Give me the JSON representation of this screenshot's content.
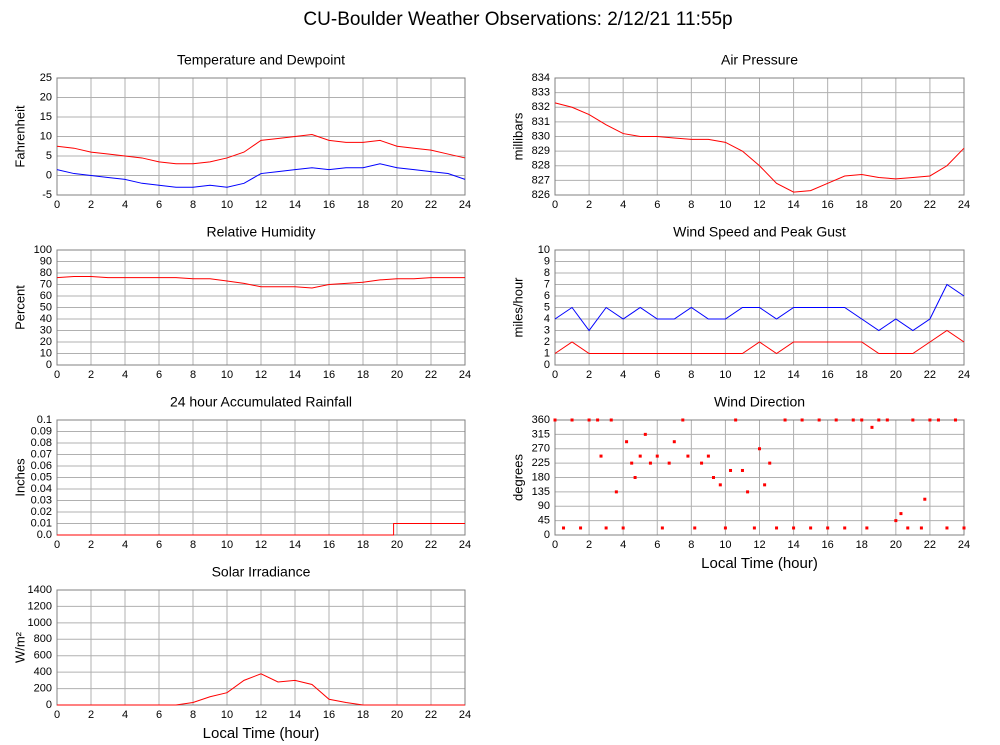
{
  "title": "CU-Boulder Weather Observations: 2/12/21 11:55p",
  "chart_data": [
    {
      "type": "line",
      "title": "Temperature and Dewpoint",
      "ylabel": "Fahrenheit",
      "grid": true,
      "x": [
        0,
        1,
        2,
        3,
        4,
        5,
        6,
        7,
        8,
        9,
        10,
        11,
        12,
        13,
        14,
        15,
        16,
        17,
        18,
        19,
        20,
        21,
        22,
        23,
        24
      ],
      "series": [
        {
          "color": "#ff0000",
          "values": [
            7.5,
            7,
            6,
            5.5,
            5,
            4.5,
            3.5,
            3,
            3,
            3.5,
            4.5,
            6,
            9,
            9.5,
            10,
            10.5,
            9,
            8.5,
            8.5,
            9,
            7.5,
            7,
            6.5,
            5.5,
            4.5
          ]
        },
        {
          "color": "#0000ff",
          "values": [
            1.5,
            0.5,
            0,
            -0.5,
            -1,
            -2,
            -2.5,
            -3,
            -3,
            -2.5,
            -3,
            -2,
            0.5,
            1,
            1.5,
            2,
            1.5,
            2,
            2,
            3,
            2,
            1.5,
            1,
            0.5,
            -1
          ]
        }
      ],
      "xlim": [
        0,
        24
      ],
      "xticks": [
        0,
        2,
        4,
        6,
        8,
        10,
        12,
        14,
        16,
        18,
        20,
        22,
        24
      ],
      "ylim": [
        -5,
        25
      ],
      "yticks": [
        -5,
        0,
        5,
        10,
        15,
        20,
        25
      ]
    },
    {
      "type": "line",
      "title": "Air Pressure",
      "ylabel": "millibars",
      "grid": true,
      "x": [
        0,
        1,
        2,
        3,
        4,
        5,
        6,
        7,
        8,
        9,
        10,
        11,
        12,
        13,
        14,
        15,
        16,
        17,
        18,
        19,
        20,
        21,
        22,
        23,
        24
      ],
      "series": [
        {
          "color": "#ff0000",
          "values": [
            832.3,
            832,
            831.5,
            830.8,
            830.2,
            830,
            830,
            829.9,
            829.8,
            829.8,
            829.6,
            829,
            828,
            826.8,
            826.2,
            826.3,
            826.8,
            827.3,
            827.4,
            827.2,
            827.1,
            827.2,
            827.3,
            828,
            829.2
          ]
        }
      ],
      "xlim": [
        0,
        24
      ],
      "xticks": [
        0,
        2,
        4,
        6,
        8,
        10,
        12,
        14,
        16,
        18,
        20,
        22,
        24
      ],
      "ylim": [
        826,
        834
      ],
      "yticks": [
        826,
        827,
        828,
        829,
        830,
        831,
        832,
        833,
        834
      ]
    },
    {
      "type": "line",
      "title": "Relative Humidity",
      "ylabel": "Percent",
      "grid": true,
      "x": [
        0,
        1,
        2,
        3,
        4,
        5,
        6,
        7,
        8,
        9,
        10,
        11,
        12,
        13,
        14,
        15,
        16,
        17,
        18,
        19,
        20,
        21,
        22,
        23,
        24
      ],
      "series": [
        {
          "color": "#ff0000",
          "values": [
            76,
            77,
            77,
            76,
            76,
            76,
            76,
            76,
            75,
            75,
            73,
            71,
            68,
            68,
            68,
            67,
            70,
            71,
            72,
            74,
            75,
            75,
            76,
            76,
            76
          ]
        }
      ],
      "xlim": [
        0,
        24
      ],
      "xticks": [
        0,
        2,
        4,
        6,
        8,
        10,
        12,
        14,
        16,
        18,
        20,
        22,
        24
      ],
      "ylim": [
        0,
        100
      ],
      "yticks": [
        0,
        10,
        20,
        30,
        40,
        50,
        60,
        70,
        80,
        90,
        100
      ]
    },
    {
      "type": "line",
      "title": "Wind Speed and Peak Gust",
      "ylabel": "miles/hour",
      "grid": true,
      "x": [
        0,
        1,
        2,
        3,
        4,
        5,
        6,
        7,
        8,
        9,
        10,
        11,
        12,
        13,
        14,
        15,
        16,
        17,
        18,
        19,
        20,
        21,
        22,
        23,
        24
      ],
      "series": [
        {
          "color": "#0000ff",
          "values": [
            4,
            5,
            3,
            5,
            4,
            5,
            4,
            4,
            5,
            4,
            4,
            5,
            5,
            4,
            5,
            5,
            5,
            5,
            4,
            3,
            4,
            3,
            4,
            7,
            6
          ]
        },
        {
          "color": "#ff0000",
          "values": [
            1,
            2,
            1,
            1,
            1,
            1,
            1,
            1,
            1,
            1,
            1,
            1,
            2,
            1,
            2,
            2,
            2,
            2,
            2,
            1,
            1,
            1,
            2,
            3,
            2
          ]
        }
      ],
      "xlim": [
        0,
        24
      ],
      "xticks": [
        0,
        2,
        4,
        6,
        8,
        10,
        12,
        14,
        16,
        18,
        20,
        22,
        24
      ],
      "ylim": [
        0,
        10
      ],
      "yticks": [
        0,
        1,
        2,
        3,
        4,
        5,
        6,
        7,
        8,
        9,
        10
      ]
    },
    {
      "type": "line",
      "title": "24 hour Accumulated Rainfall",
      "ylabel": "Inches",
      "grid": true,
      "x": [
        0,
        19.8,
        19.8,
        24
      ],
      "series": [
        {
          "color": "#ff0000",
          "values": [
            0,
            0,
            0.01,
            0.01
          ]
        }
      ],
      "xlim": [
        0,
        24
      ],
      "xticks": [
        0,
        2,
        4,
        6,
        8,
        10,
        12,
        14,
        16,
        18,
        20,
        22,
        24
      ],
      "ylim": [
        0,
        0.1
      ],
      "yticks": [
        {
          "value": 0,
          "label": "0.0"
        },
        0.01,
        0.02,
        0.03,
        0.04,
        0.05,
        0.06,
        0.07,
        0.08,
        0.09,
        0.1
      ]
    },
    {
      "type": "scatter",
      "title": "Wind Direction",
      "ylabel": "degrees",
      "xlabel": "Local Time (hour)",
      "grid": true,
      "x": [
        0,
        0.5,
        1,
        1.5,
        2,
        2.5,
        2.7,
        3,
        3.3,
        3.6,
        4,
        4.2,
        4.5,
        4.7,
        5,
        5.3,
        5.6,
        6,
        6.3,
        6.7,
        7,
        7.5,
        7.8,
        8.2,
        8.6,
        9,
        9.3,
        9.7,
        10,
        10.3,
        10.6,
        11,
        11.3,
        11.7,
        12,
        12.3,
        12.6,
        13,
        13.5,
        14,
        14.5,
        15,
        15.5,
        16,
        16.5,
        17,
        17.5,
        18,
        18.3,
        18.6,
        19,
        19.5,
        20,
        20.3,
        20.7,
        21,
        21.5,
        21.7,
        22,
        22.5,
        23,
        23.5,
        24
      ],
      "series": [
        {
          "color": "#ff0000",
          "values": [
            360,
            22,
            360,
            22,
            360,
            360,
            247,
            22,
            360,
            135,
            22,
            292,
            225,
            180,
            247,
            315,
            225,
            247,
            22,
            225,
            292,
            360,
            247,
            22,
            225,
            247,
            180,
            157,
            22,
            202,
            360,
            202,
            135,
            22,
            270,
            157,
            225,
            22,
            360,
            22,
            360,
            22,
            360,
            22,
            360,
            22,
            360,
            360,
            22,
            337,
            360,
            360,
            45,
            67,
            22,
            360,
            22,
            112,
            360,
            360,
            22,
            360,
            22
          ]
        }
      ],
      "xlim": [
        0,
        24
      ],
      "xticks": [
        0,
        2,
        4,
        6,
        8,
        10,
        12,
        14,
        16,
        18,
        20,
        22,
        24
      ],
      "ylim": [
        0,
        360
      ],
      "yticks": [
        0,
        45,
        90,
        135,
        180,
        225,
        270,
        315,
        360
      ]
    },
    {
      "type": "line",
      "title": "Solar Irradiance",
      "ylabel": "W/m²",
      "xlabel": "Local Time (hour)",
      "grid": true,
      "x": [
        0,
        1,
        2,
        3,
        4,
        5,
        6,
        7,
        8,
        9,
        10,
        11,
        12,
        13,
        14,
        15,
        16,
        17,
        18,
        19,
        20,
        21,
        22,
        23,
        24
      ],
      "series": [
        {
          "color": "#ff0000",
          "values": [
            0,
            0,
            0,
            0,
            0,
            0,
            0,
            0,
            30,
            100,
            150,
            300,
            380,
            280,
            300,
            250,
            70,
            30,
            0,
            0,
            0,
            0,
            0,
            0,
            0
          ]
        }
      ],
      "xlim": [
        0,
        24
      ],
      "xticks": [
        0,
        2,
        4,
        6,
        8,
        10,
        12,
        14,
        16,
        18,
        20,
        22,
        24
      ],
      "ylim": [
        0,
        1400
      ],
      "yticks": [
        0,
        200,
        400,
        600,
        800,
        1000,
        1200,
        1400
      ]
    }
  ]
}
